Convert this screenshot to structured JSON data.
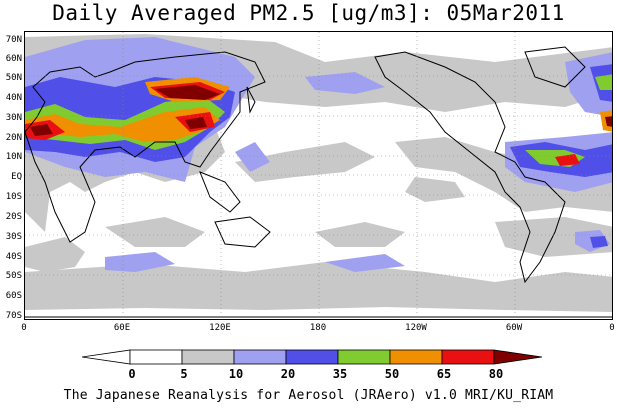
{
  "title": "Daily Averaged PM2.5 [ug/m3]: 05Mar2011",
  "footer": "The Japanese Reanalysis for Aerosol (JRAero) v1.0 MRI/KU_RIAM",
  "map": {
    "projection": "equirectangular",
    "central_longitude": "0 to 360 (Pacific-centred)",
    "lat_labels": [
      "70N",
      "60N",
      "50N",
      "40N",
      "30N",
      "20N",
      "10N",
      "EQ",
      "10S",
      "20S",
      "30S",
      "40S",
      "50S",
      "60S",
      "70S"
    ],
    "lon_labels": [
      "0",
      "60E",
      "120E",
      "180",
      "120W",
      "60W",
      "0"
    ],
    "gridlines": "dotted"
  },
  "colorbar": {
    "labels": [
      "0",
      "5",
      "10",
      "20",
      "35",
      "50",
      "65",
      "80"
    ],
    "colors": [
      "#ffffff",
      "#c8c8c8",
      "#a0a0f0",
      "#5050e8",
      "#80cc30",
      "#f09000",
      "#e81010",
      "#800000"
    ]
  },
  "colors": {
    "bin_0_5": "#ffffff",
    "bin_5_10": "#c8c8c8",
    "bin_10_20": "#a0a0f0",
    "bin_20_35": "#5050e8",
    "bin_35_50": "#80cc30",
    "bin_50_65": "#f09000",
    "bin_65_80": "#e81010",
    "bin_80_plus": "#800000"
  }
}
